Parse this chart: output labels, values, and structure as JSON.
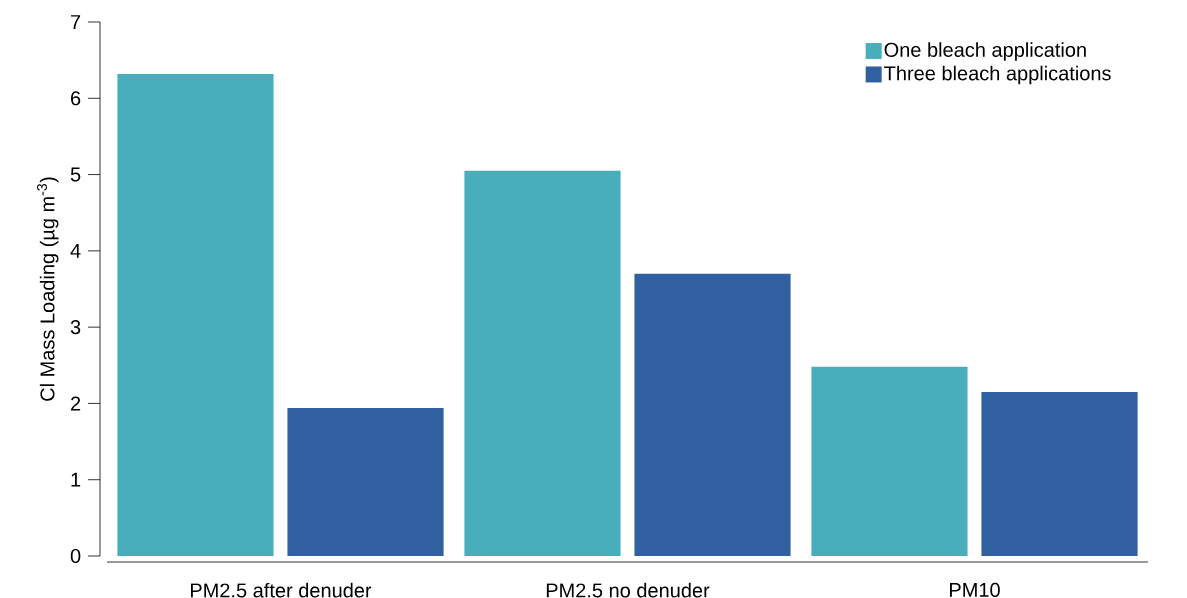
{
  "chart_data": {
    "type": "bar",
    "ylabel": "Cl Mass Loading (µg m$^{-3}$)",
    "categories": [
      "PM2.5 after denuder",
      "PM2.5 no denuder",
      "PM10"
    ],
    "series": [
      {
        "name": "One bleach application",
        "color": "#48aebc",
        "values": [
          6.32,
          5.05,
          2.48
        ]
      },
      {
        "name": "Three bleach applications",
        "color": "#3060a0",
        "values": [
          1.94,
          3.7,
          2.15
        ]
      }
    ],
    "ylim": [
      0,
      7
    ],
    "yticks": [
      0,
      1,
      2,
      3,
      4,
      5,
      6,
      7
    ],
    "legend": "top right"
  }
}
